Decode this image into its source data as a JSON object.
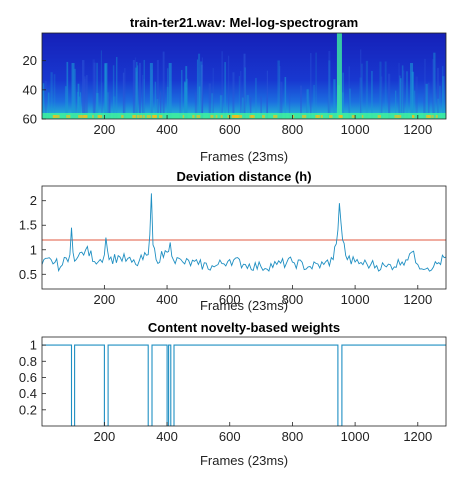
{
  "chart_data": [
    {
      "type": "heatmap",
      "title": "train-ter21.wav: Mel-log-spectrogram",
      "xlabel": "Frames (23ms)",
      "ylabel": "",
      "xlim": [
        1,
        1290
      ],
      "ylim": [
        1,
        60
      ],
      "xticks": [
        "200",
        "400",
        "600",
        "800",
        "1000",
        "1200"
      ],
      "yticks": [
        "20",
        "40",
        "60"
      ],
      "colormap": "parula",
      "colors": {
        "low": "#1a28c8",
        "mid": "#1a9ad6",
        "high": "#3ef0a0",
        "peak": "#f0c020"
      },
      "highlight_frames": [
        100,
        205,
        350,
        410,
        950,
        1180
      ]
    },
    {
      "type": "line",
      "title": "Deviation distance (h)",
      "xlabel": "Frames (23ms)",
      "ylabel": "",
      "xlim": [
        1,
        1290
      ],
      "ylim": [
        0.2,
        2.3
      ],
      "xticks": [
        "200",
        "400",
        "600",
        "800",
        "1000",
        "1200"
      ],
      "yticks": [
        "0.5",
        "1",
        "1.5",
        "2"
      ],
      "series": [
        {
          "color": "#1f8fc2",
          "x": [
            1,
            30,
            60,
            90,
            95,
            100,
            110,
            140,
            180,
            200,
            205,
            215,
            250,
            300,
            340,
            345,
            350,
            355,
            365,
            400,
            410,
            420,
            450,
            500,
            550,
            600,
            650,
            700,
            750,
            800,
            850,
            900,
            930,
            945,
            950,
            960,
            975,
            1000,
            1050,
            1100,
            1150,
            1180,
            1200,
            1250,
            1290
          ],
          "y": [
            0.7,
            0.8,
            0.65,
            0.9,
            1.45,
            0.95,
            0.8,
            1.0,
            0.75,
            0.9,
            1.25,
            0.8,
            0.85,
            0.7,
            0.9,
            1.3,
            2.15,
            1.1,
            0.8,
            0.95,
            1.15,
            0.8,
            0.75,
            0.7,
            0.65,
            0.8,
            0.7,
            0.65,
            0.7,
            0.75,
            0.65,
            0.7,
            0.8,
            1.4,
            1.95,
            1.2,
            0.8,
            0.75,
            0.7,
            0.65,
            0.75,
            0.95,
            0.7,
            0.65,
            0.85
          ]
        }
      ],
      "threshold": {
        "value": 1.2,
        "color": "#e05a40"
      }
    },
    {
      "type": "line",
      "title": "Content novelty-based weights",
      "xlabel": "Frames (23ms)",
      "ylabel": "",
      "xlim": [
        1,
        1290
      ],
      "ylim": [
        0,
        1.1
      ],
      "xticks": [
        "200",
        "400",
        "600",
        "800",
        "1000",
        "1200"
      ],
      "yticks": [
        "0.2",
        "0.4",
        "0.6",
        "0.8",
        "1"
      ],
      "series": [
        {
          "color": "#1f8fc2",
          "x": [
            1,
            95,
            95,
            105,
            105,
            200,
            200,
            212,
            212,
            340,
            340,
            352,
            352,
            400,
            400,
            405,
            405,
            412,
            412,
            422,
            422,
            945,
            945,
            958,
            958,
            1290
          ],
          "y": [
            1,
            1,
            0,
            0,
            1,
            1,
            0,
            0,
            1,
            1,
            0,
            0,
            1,
            1,
            0,
            0,
            1,
            1,
            0,
            0,
            1,
            1,
            0,
            0,
            1,
            1
          ]
        }
      ]
    }
  ]
}
